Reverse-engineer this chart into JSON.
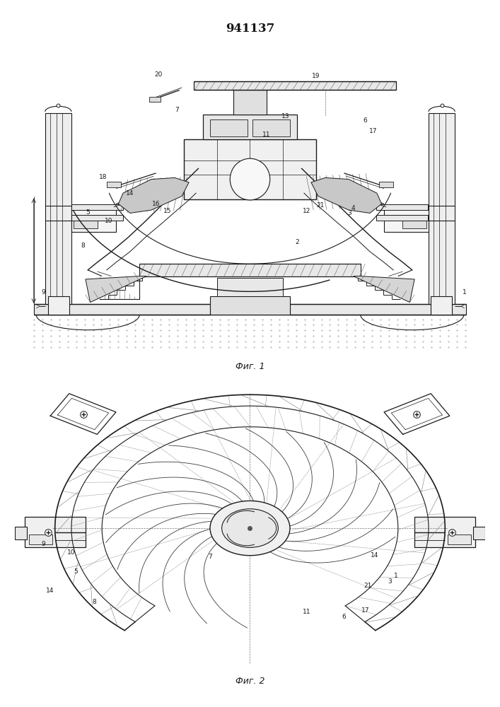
{
  "title": "941137",
  "fig1_label": "Фиг. 1",
  "fig2_label": "Фиг. 2",
  "bg": "#ffffff",
  "lc": "#1a1a1a",
  "title_fs": 12,
  "annot_fs": 6.5,
  "fig_label_fs": 9
}
